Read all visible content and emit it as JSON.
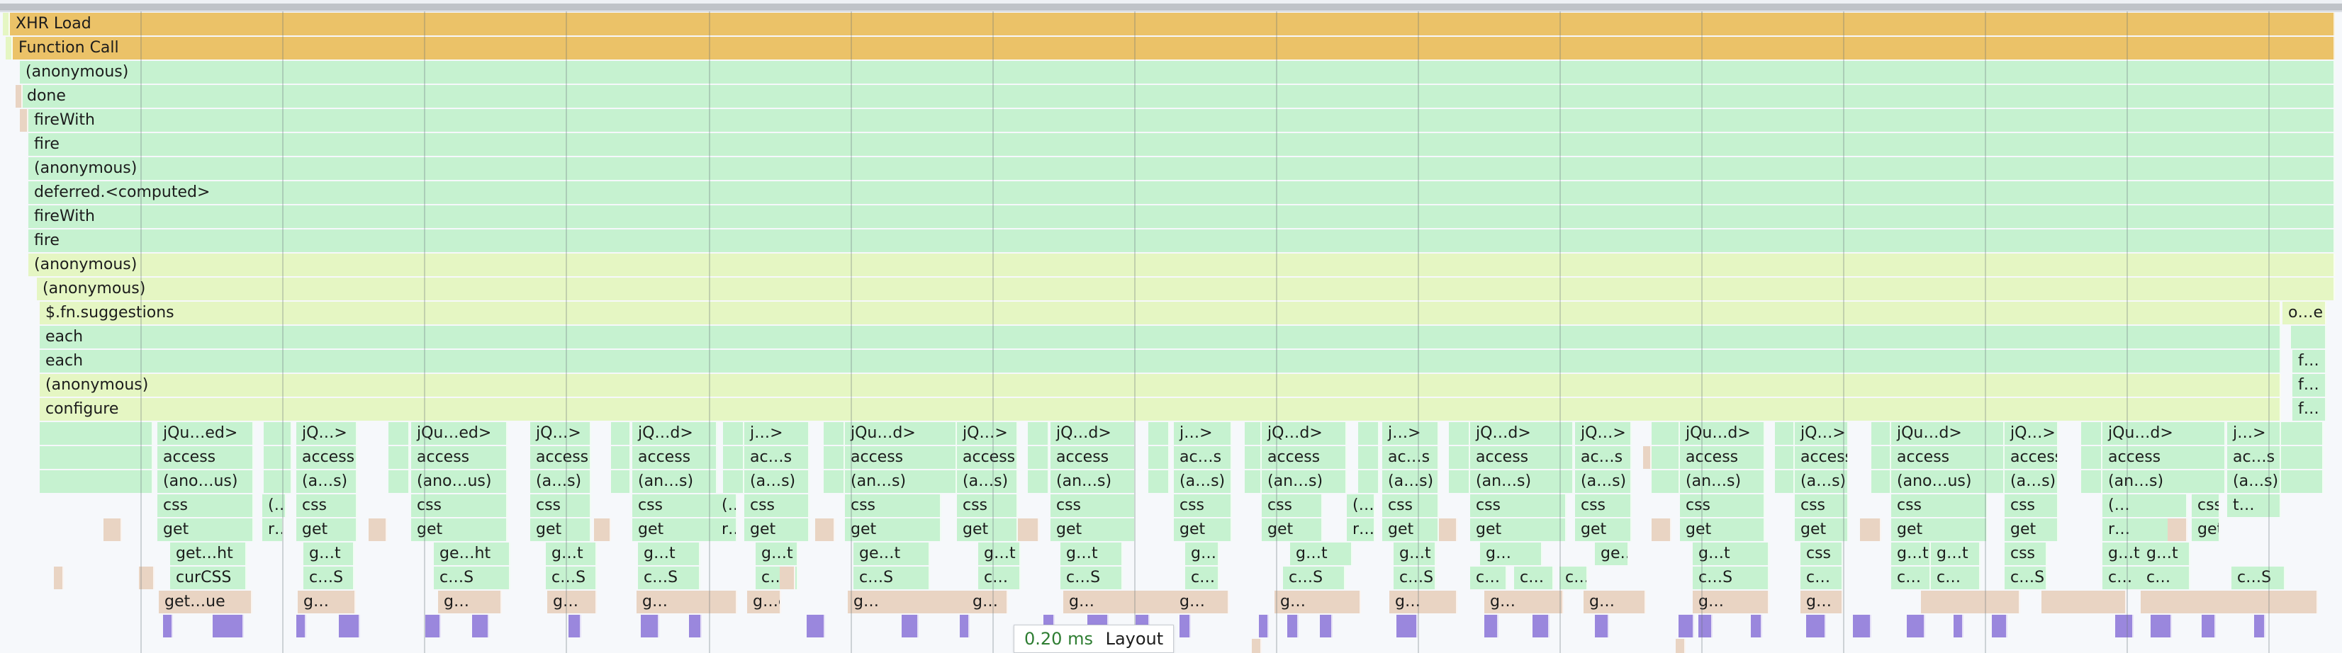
{
  "colors": {
    "xhr": "#ebc268",
    "green": "#c6f2d0",
    "lime": "#e5f6c3",
    "tan": "#e9d4c3",
    "purple": "#9a87dd"
  },
  "stack": [
    "XHR Load",
    "Function Call",
    "(anonymous)",
    "done",
    "fireWith",
    "fire",
    "(anonymous)",
    "deferred.<computed>",
    "fireWith",
    "fire",
    "(anonymous)",
    "(anonymous)",
    "$.fn.suggestions",
    "each",
    "each",
    "(anonymous)",
    "configure"
  ],
  "right_edge_labels": [
    "o…e",
    "f…",
    "f…",
    "f…"
  ],
  "row_labels": {
    "jquery": [
      "jQu…ed>",
      "jQ…>",
      "jQu…ed>",
      "jQ…>",
      "jQ…d>",
      "j…>",
      "jQu…d>",
      "jQ…>",
      "jQ…d>",
      "j…>",
      "jQ…d>",
      "j…>",
      "jQ…d>",
      "jQ…>",
      "jQu…d>",
      "jQ…>",
      "jQu…d>",
      "jQ…>",
      "jQu…d>",
      "j…>"
    ],
    "access": [
      "access",
      "access",
      "access",
      "access",
      "access",
      "ac…s",
      "access",
      "access",
      "access",
      "ac…s",
      "access",
      "ac…s",
      "access",
      "ac…s",
      "access",
      "access",
      "access",
      "access",
      "access",
      "ac…s"
    ],
    "anon": [
      "(ano…us)",
      "(a…s)",
      "(ano…us)",
      "(a…s)",
      "(an…s)",
      "(a…s)",
      "(an…s)",
      "(a…s)",
      "(an…s)",
      "(a…s)",
      "(an…s)",
      "(a…s)",
      "(an…s)",
      "(a…s)",
      "(an…s)",
      "(a…s)",
      "(ano…us)",
      "(a…s)",
      "(an…s)",
      "(a…s)"
    ],
    "css": [
      "css",
      "(…",
      "css",
      "css",
      "css",
      "css",
      "(…",
      "css",
      "css",
      "css",
      "css",
      "css",
      "css",
      "(…",
      "css",
      "css",
      "css",
      "css",
      "css",
      "css",
      "css",
      "(…",
      "css",
      "t…"
    ],
    "get": [
      "get",
      "r…",
      "get",
      "get",
      "get",
      "get",
      "r…",
      "get",
      "get",
      "get",
      "get",
      "get",
      "get",
      "r…",
      "get",
      "get",
      "get",
      "get",
      "get",
      "get",
      "get",
      "r…",
      "get"
    ],
    "getr": [
      "get…ht",
      "g…t",
      "ge…ht",
      "g…t",
      "g…t",
      "g…t",
      "ge…t",
      "g…t",
      "g…t",
      "g…",
      "g…t",
      "g…t",
      "g…",
      "ge…t",
      "g…t",
      "css",
      "g…t",
      "g…t",
      "css",
      "g…t",
      "g…t"
    ],
    "curcss": [
      "curCSS",
      "c…S",
      "c…S",
      "c…S",
      "c…S",
      "c…",
      "c…S",
      "c…",
      "c…S",
      "c…",
      "c…S",
      "c…S",
      "c…",
      "c…",
      "c…",
      "c…S",
      "c…",
      "c…",
      "c…",
      "c…S",
      "c…",
      "c…",
      "c…S"
    ],
    "tan": [
      "get…ue",
      "g…",
      "g…",
      "g…",
      "g…",
      "g…e",
      "g…",
      "g…",
      "g…",
      "g…",
      "g…",
      "g…",
      "g…",
      "g…",
      "g…",
      "g…"
    ]
  },
  "tooltip": {
    "time": "0.20 ms",
    "label": "Layout"
  }
}
